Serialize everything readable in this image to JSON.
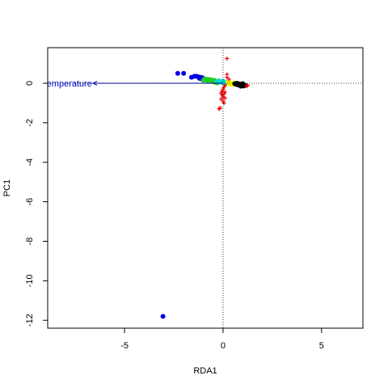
{
  "chart_data": {
    "type": "scatter",
    "title": "",
    "xlabel": "RDA1",
    "ylabel": "PC1",
    "xlim": [
      -8.9,
      7.1
    ],
    "ylim": [
      -12.4,
      1.8
    ],
    "xticks": [
      -5,
      0,
      5
    ],
    "yticks": [
      0,
      -2,
      -4,
      -6,
      -8,
      -10,
      -12
    ],
    "reference_lines": {
      "x": 0,
      "y": 0,
      "style": "dotted"
    },
    "grid": false,
    "legend": "none",
    "biplot_arrow": {
      "label": "Temperature",
      "from": [
        0,
        0
      ],
      "to": [
        -6.6,
        0
      ],
      "color": "#0000CC"
    },
    "series": [
      {
        "marker": "circle",
        "color": "#0000E0",
        "points": [
          [
            -2.3,
            0.5
          ],
          [
            -2.0,
            0.5
          ],
          [
            -1.6,
            0.3
          ],
          [
            -1.45,
            0.35
          ],
          [
            -1.35,
            0.35
          ],
          [
            -1.25,
            0.32
          ],
          [
            -1.2,
            0.25
          ],
          [
            -1.15,
            0.3
          ],
          [
            -1.1,
            0.22
          ],
          [
            -1.05,
            0.28
          ],
          [
            -1.0,
            0.2
          ],
          [
            -3.05,
            -11.8
          ]
        ]
      },
      {
        "marker": "circle",
        "color": "#22CC22",
        "points": [
          [
            -1.0,
            0.15
          ],
          [
            -0.95,
            0.2
          ],
          [
            -0.9,
            0.22
          ],
          [
            -0.85,
            0.18
          ],
          [
            -0.8,
            0.12
          ],
          [
            -0.75,
            0.2
          ],
          [
            -0.7,
            0.15
          ],
          [
            -0.65,
            0.1
          ],
          [
            -0.6,
            0.18
          ],
          [
            -0.55,
            0.12
          ],
          [
            -0.5,
            0.08
          ],
          [
            -0.45,
            0.15
          ],
          [
            -0.4,
            0.05
          ],
          [
            -0.35,
            0.1
          ],
          [
            -0.3,
            0.02
          ]
        ]
      },
      {
        "marker": "circle",
        "color": "#00D8D8",
        "points": [
          [
            -0.3,
            0.08
          ],
          [
            -0.2,
            0.12
          ],
          [
            -0.1,
            0.05
          ],
          [
            0.0,
            0.1
          ],
          [
            0.05,
            0.02
          ],
          [
            0.1,
            0.06
          ],
          [
            0.15,
            -0.02
          ],
          [
            0.2,
            0.04
          ]
        ]
      },
      {
        "marker": "circle",
        "color": "#EEEE00",
        "points": [
          [
            0.25,
            0.05
          ],
          [
            0.3,
            -0.02
          ],
          [
            0.35,
            0.03
          ],
          [
            0.4,
            -0.05
          ],
          [
            0.45,
            0.0
          ],
          [
            0.5,
            -0.06
          ],
          [
            0.55,
            0.02
          ],
          [
            0.6,
            -0.04
          ]
        ]
      },
      {
        "marker": "circle",
        "color": "#000000",
        "points": [
          [
            0.6,
            -0.02
          ],
          [
            0.65,
            -0.05
          ],
          [
            0.7,
            0.0
          ],
          [
            0.75,
            -0.08
          ],
          [
            0.8,
            -0.03
          ],
          [
            0.85,
            -0.1
          ],
          [
            0.9,
            -0.05
          ],
          [
            0.95,
            -0.12
          ],
          [
            1.0,
            -0.08
          ],
          [
            1.05,
            -0.14
          ],
          [
            1.1,
            -0.1
          ],
          [
            1.0,
            -0.02
          ],
          [
            0.9,
            -0.15
          ]
        ]
      },
      {
        "marker": "plus",
        "color": "#EE0000",
        "points": [
          [
            0.2,
            1.25
          ],
          [
            0.2,
            0.45
          ],
          [
            0.2,
            0.3
          ],
          [
            0.3,
            0.2
          ],
          [
            1.25,
            -0.1
          ],
          [
            1.2,
            -0.15
          ],
          [
            0.1,
            -0.1
          ],
          [
            0.05,
            -0.2
          ],
          [
            0.0,
            -0.3
          ],
          [
            -0.05,
            -0.4
          ],
          [
            0.1,
            -0.45
          ],
          [
            -0.1,
            -0.5
          ],
          [
            0.05,
            -0.55
          ],
          [
            -0.05,
            -0.6
          ],
          [
            0.0,
            -0.7
          ],
          [
            0.1,
            -0.75
          ],
          [
            -0.1,
            -0.8
          ],
          [
            0.0,
            -0.9
          ],
          [
            0.05,
            -1.0
          ],
          [
            -0.15,
            -1.25
          ],
          [
            -0.2,
            -1.3
          ]
        ]
      }
    ]
  }
}
